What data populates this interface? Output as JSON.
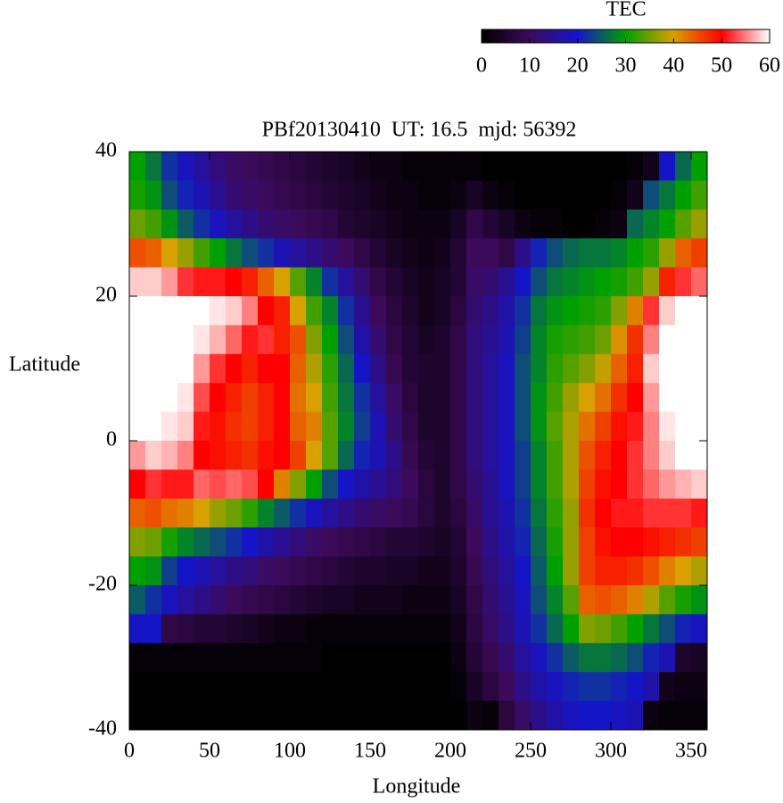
{
  "chart_data": {
    "type": "heatmap",
    "title": "PBf20130410  UT: 16.5  mjd: 56392",
    "x_label": "Longitude",
    "y_label": "Latitude",
    "colorbar_label": "TEC",
    "xlim": [
      0,
      360
    ],
    "ylim": [
      -40,
      40
    ],
    "xticks": [
      0,
      50,
      100,
      150,
      200,
      250,
      300,
      350
    ],
    "yticks": [
      -40,
      -20,
      0,
      20,
      40
    ],
    "zlim": [
      0,
      60
    ],
    "zticks": [
      0,
      10,
      20,
      30,
      40,
      50,
      60
    ],
    "colormap": [
      "#000000",
      "#3c0a5a",
      "#1515c8",
      "#00a000",
      "#d8a000",
      "#ff0000",
      "#ffffff"
    ],
    "x": [
      5,
      15,
      25,
      35,
      45,
      55,
      65,
      75,
      85,
      95,
      105,
      115,
      125,
      135,
      145,
      155,
      165,
      175,
      185,
      195,
      205,
      215,
      225,
      235,
      245,
      255,
      265,
      275,
      285,
      295,
      305,
      315,
      325,
      335,
      345,
      355
    ],
    "y": [
      38,
      34,
      30,
      26,
      22,
      18,
      14,
      10,
      6,
      2,
      -2,
      -6,
      -10,
      -14,
      -18,
      -22,
      -26,
      -30,
      -34,
      -38
    ],
    "z": [
      [
        30,
        27,
        22,
        19,
        16,
        13,
        11,
        10,
        9,
        8,
        7,
        6,
        5,
        4,
        3,
        2,
        2,
        1,
        1,
        1,
        1,
        1,
        0,
        0,
        0,
        0,
        0,
        0,
        0,
        0,
        0,
        1,
        3,
        20,
        26,
        30
      ],
      [
        31,
        29,
        24,
        21,
        18,
        15,
        12,
        11,
        10,
        9,
        8,
        7,
        6,
        5,
        4,
        3,
        2,
        2,
        1,
        1,
        2,
        4,
        2,
        1,
        0,
        0,
        0,
        0,
        0,
        0,
        1,
        3,
        24,
        27,
        30,
        33
      ],
      [
        35,
        33,
        29,
        25,
        22,
        19,
        16,
        14,
        12,
        11,
        10,
        9,
        8,
        6,
        5,
        4,
        3,
        2,
        2,
        2,
        4,
        8,
        6,
        4,
        2,
        1,
        1,
        0,
        0,
        1,
        2,
        26,
        28,
        30,
        34,
        37
      ],
      [
        45,
        44,
        40,
        37,
        33,
        30,
        27,
        24,
        22,
        18,
        16,
        14,
        12,
        10,
        8,
        6,
        4,
        3,
        2,
        3,
        6,
        10,
        10,
        8,
        14,
        21,
        24,
        26,
        27,
        27,
        28,
        30,
        32,
        37,
        44,
        46
      ],
      [
        58,
        58,
        56,
        52,
        51,
        51,
        50,
        48,
        44,
        40,
        34,
        28,
        22,
        16,
        12,
        8,
        6,
        4,
        3,
        4,
        6,
        11,
        12,
        15,
        20,
        24,
        27,
        28,
        29,
        30,
        31,
        33,
        37,
        48,
        52,
        54
      ],
      [
        60,
        60,
        60,
        60,
        60,
        59,
        58,
        55,
        50,
        48,
        40,
        33,
        28,
        22,
        15,
        10,
        7,
        5,
        3,
        4,
        7,
        12,
        14,
        17,
        22,
        27,
        29,
        30,
        31,
        32,
        36,
        42,
        52,
        58,
        60,
        60
      ],
      [
        60,
        60,
        60,
        60,
        59,
        57,
        54,
        51,
        52,
        48,
        45,
        36,
        30,
        24,
        17,
        12,
        8,
        6,
        4,
        5,
        8,
        13,
        15,
        18,
        23,
        28,
        31,
        32,
        33,
        35,
        41,
        47,
        55,
        60,
        60,
        60
      ],
      [
        60,
        60,
        60,
        60,
        56,
        52,
        50,
        48,
        50,
        50,
        44,
        38,
        32,
        26,
        20,
        14,
        9,
        6,
        5,
        5,
        8,
        13,
        16,
        19,
        24,
        28,
        32,
        34,
        36,
        39,
        44,
        48,
        58,
        60,
        60,
        60
      ],
      [
        60,
        60,
        60,
        59,
        53,
        50,
        48,
        46,
        48,
        50,
        43,
        40,
        33,
        27,
        22,
        16,
        11,
        7,
        5,
        5,
        8,
        13,
        16,
        19,
        24,
        29,
        33,
        37,
        40,
        43,
        47,
        50,
        56,
        60,
        60,
        60
      ],
      [
        60,
        60,
        59,
        58,
        51,
        49,
        47,
        46,
        48,
        50,
        44,
        42,
        34,
        28,
        23,
        18,
        12,
        8,
        5,
        5,
        8,
        13,
        16,
        19,
        24,
        29,
        34,
        38,
        43,
        46,
        49,
        51,
        55,
        59,
        60,
        60
      ],
      [
        56,
        58,
        57,
        55,
        50,
        49,
        48,
        47,
        49,
        50,
        46,
        40,
        34,
        26,
        21,
        18,
        14,
        9,
        6,
        5,
        8,
        13,
        16,
        19,
        23,
        28,
        33,
        38,
        45,
        48,
        50,
        52,
        55,
        58,
        60,
        60
      ],
      [
        50,
        52,
        51,
        51,
        54,
        53,
        54,
        53,
        50,
        42,
        36,
        30,
        24,
        20,
        17,
        15,
        13,
        10,
        7,
        5,
        8,
        12,
        15,
        19,
        23,
        28,
        33,
        38,
        46,
        49,
        50,
        52,
        54,
        56,
        57,
        58
      ],
      [
        44,
        45,
        43,
        42,
        40,
        37,
        35,
        32,
        28,
        25,
        22,
        19,
        16,
        14,
        12,
        11,
        10,
        9,
        7,
        5,
        7,
        11,
        15,
        18,
        22,
        27,
        32,
        37,
        47,
        50,
        51,
        51,
        52,
        52,
        52,
        51
      ],
      [
        36,
        35,
        31,
        28,
        26,
        24,
        22,
        20,
        17,
        15,
        13,
        11,
        10,
        9,
        8,
        7,
        6,
        6,
        5,
        4,
        6,
        10,
        14,
        17,
        21,
        26,
        31,
        37,
        46,
        49,
        50,
        50,
        49,
        48,
        47,
        46
      ],
      [
        30,
        29,
        23,
        20,
        18,
        16,
        14,
        13,
        11,
        10,
        9,
        8,
        7,
        6,
        5,
        5,
        4,
        4,
        3,
        3,
        5,
        9,
        13,
        16,
        20,
        25,
        30,
        37,
        46,
        48,
        48,
        47,
        45,
        42,
        40,
        38
      ],
      [
        25,
        22,
        19,
        16,
        14,
        12,
        10,
        9,
        8,
        7,
        6,
        5,
        4,
        4,
        3,
        3,
        3,
        2,
        2,
        2,
        4,
        8,
        12,
        15,
        19,
        24,
        28,
        34,
        44,
        45,
        44,
        42,
        38,
        34,
        31,
        29
      ],
      [
        20,
        20,
        8,
        7,
        6,
        6,
        5,
        4,
        3,
        2,
        2,
        1,
        1,
        1,
        1,
        1,
        1,
        1,
        1,
        1,
        3,
        7,
        11,
        14,
        18,
        22,
        26,
        30,
        36,
        35,
        33,
        30,
        27,
        24,
        21,
        19
      ],
      [
        1,
        1,
        1,
        1,
        1,
        1,
        1,
        1,
        1,
        1,
        1,
        1,
        0,
        0,
        0,
        0,
        0,
        0,
        0,
        0,
        2,
        6,
        9,
        12,
        16,
        19,
        22,
        25,
        27,
        27,
        26,
        24,
        21,
        18,
        5,
        4
      ],
      [
        0,
        0,
        0,
        0,
        0,
        0,
        0,
        0,
        0,
        0,
        0,
        0,
        0,
        0,
        0,
        0,
        0,
        0,
        0,
        0,
        1,
        4,
        7,
        10,
        14,
        17,
        19,
        21,
        22,
        22,
        21,
        20,
        17,
        3,
        2,
        2
      ],
      [
        0,
        0,
        0,
        0,
        0,
        0,
        0,
        0,
        0,
        0,
        0,
        0,
        0,
        0,
        0,
        0,
        0,
        0,
        0,
        0,
        0,
        2,
        1,
        7,
        11,
        14,
        17,
        19,
        20,
        20,
        19,
        18,
        2,
        1,
        1,
        1
      ]
    ]
  }
}
